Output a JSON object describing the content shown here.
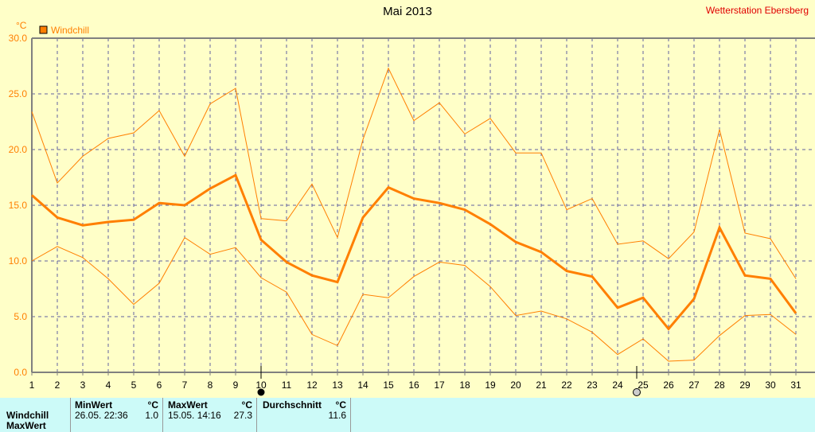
{
  "title": "Mai 2013",
  "station": "Wetterstation Ebersberg",
  "colors": {
    "series": "#ff7f00",
    "grid": "#6060a0",
    "axis": "#808080"
  },
  "chart_data": {
    "type": "line",
    "title": "Mai 2013",
    "ylabel": "°C",
    "ylim": [
      0,
      30
    ],
    "yticks": [
      "0.0",
      "5.0",
      "10.0",
      "15.0",
      "20.0",
      "25.0",
      "30.0"
    ],
    "x": [
      1,
      2,
      3,
      4,
      5,
      6,
      7,
      8,
      9,
      10,
      11,
      12,
      13,
      14,
      15,
      16,
      17,
      18,
      19,
      20,
      21,
      22,
      23,
      24,
      25,
      26,
      27,
      28,
      29,
      30,
      31
    ],
    "legend": "Windchill",
    "series": [
      {
        "name": "Windchill Mittel",
        "values": [
          15.9,
          13.9,
          13.2,
          13.5,
          13.7,
          15.2,
          15.0,
          16.5,
          17.7,
          11.9,
          9.9,
          8.7,
          8.1,
          13.9,
          16.6,
          15.6,
          15.2,
          14.6,
          13.3,
          11.7,
          10.8,
          9.1,
          8.6,
          5.8,
          6.7,
          3.9,
          6.6,
          13.0,
          8.7,
          8.4,
          5.3
        ]
      },
      {
        "name": "Windchill Max",
        "values": [
          23.4,
          17.0,
          19.4,
          21.0,
          21.5,
          23.5,
          19.4,
          24.1,
          25.5,
          13.8,
          13.6,
          16.9,
          12.1,
          20.9,
          27.3,
          22.6,
          24.2,
          21.4,
          22.8,
          19.7,
          19.7,
          14.6,
          15.6,
          11.5,
          11.8,
          10.2,
          12.6,
          21.8,
          12.5,
          12.0,
          8.4
        ]
      },
      {
        "name": "Windchill Min",
        "values": [
          10.0,
          11.3,
          10.3,
          8.4,
          6.1,
          8.0,
          12.1,
          10.6,
          11.2,
          8.5,
          7.2,
          3.4,
          2.4,
          7.0,
          6.7,
          8.6,
          9.9,
          9.6,
          7.7,
          5.1,
          5.5,
          4.8,
          3.6,
          1.6,
          3.0,
          1.0,
          1.1,
          3.3,
          5.1,
          5.2,
          3.4
        ]
      }
    ],
    "markers": {
      "full_moon_day": 10,
      "new_moon_day": 25
    }
  },
  "table": {
    "row1": "Windchill",
    "row2": "MaxWert",
    "min": {
      "header": "MinWert",
      "unit": "°C",
      "date": "26.05.  22:36",
      "value": "1.0"
    },
    "max": {
      "header": "MaxWert",
      "unit": "°C",
      "date": "15.05.  14:16",
      "value": "27.3"
    },
    "avg": {
      "header": "Durchschnitt",
      "unit": "°C",
      "value": "11.6"
    }
  }
}
